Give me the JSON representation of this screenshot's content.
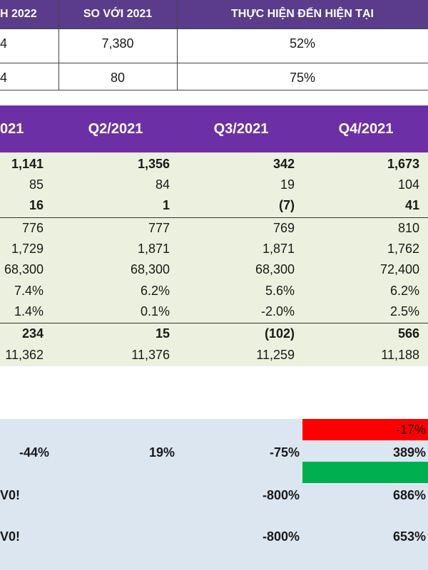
{
  "top_table": {
    "headers": [
      "H 2022",
      "SO VỚI 2021",
      "THỰC HIỆN ĐẾN HIỆN TẠI"
    ],
    "rows": [
      {
        "c0": "4",
        "c1": "7,380",
        "c2": "52%"
      },
      {
        "c0": "4",
        "c1": "80",
        "c2": "75%"
      }
    ]
  },
  "quarter_table": {
    "headers": [
      "021",
      "Q2/2021",
      "Q3/2021",
      "Q4/2021"
    ],
    "rows": [
      {
        "cells": [
          "1,141",
          "1,356",
          "342",
          "1,673"
        ],
        "bold": true
      },
      {
        "cells": [
          "85",
          "84",
          "19",
          "104"
        ],
        "bold": false
      },
      {
        "cells": [
          "16",
          "1",
          "(7)",
          "41"
        ],
        "bold": true
      },
      {
        "cells": [
          "776",
          "777",
          "769",
          "810"
        ],
        "bold": false
      },
      {
        "cells": [
          "1,729",
          "1,871",
          "1,871",
          "1,762"
        ],
        "bold": false
      },
      {
        "cells": [
          "68,300",
          "68,300",
          "68,300",
          "72,400"
        ],
        "bold": false
      },
      {
        "cells": [
          "7.4%",
          "6.2%",
          "5.6%",
          "6.2%"
        ],
        "bold": false
      },
      {
        "cells": [
          "1.4%",
          "0.1%",
          "-2.0%",
          "2.5%"
        ],
        "bold": false
      },
      {
        "cells": [
          "234",
          "15",
          "(102)",
          "566"
        ],
        "bold": true
      },
      {
        "cells": [
          "11,362",
          "11,376",
          "11,259",
          "11,188"
        ],
        "bold": false
      }
    ]
  },
  "growth_section": {
    "red_value": "-17%",
    "rows": [
      {
        "cells": [
          "-44%",
          "19%",
          "-75%",
          "389%"
        ]
      },
      {
        "cells": [
          "V0!",
          "",
          "-800%",
          "686%"
        ]
      },
      {
        "cells": [
          "V0!",
          "",
          "-800%",
          "653%"
        ]
      }
    ]
  },
  "colors": {
    "top_header": "#5b3c8c",
    "quarter_header": "#6d2fa6",
    "quarter_body": "#ebf1de",
    "bottom_body": "#dce6f1",
    "negative_flag": "#ff0000",
    "positive_flag": "#00b050"
  }
}
